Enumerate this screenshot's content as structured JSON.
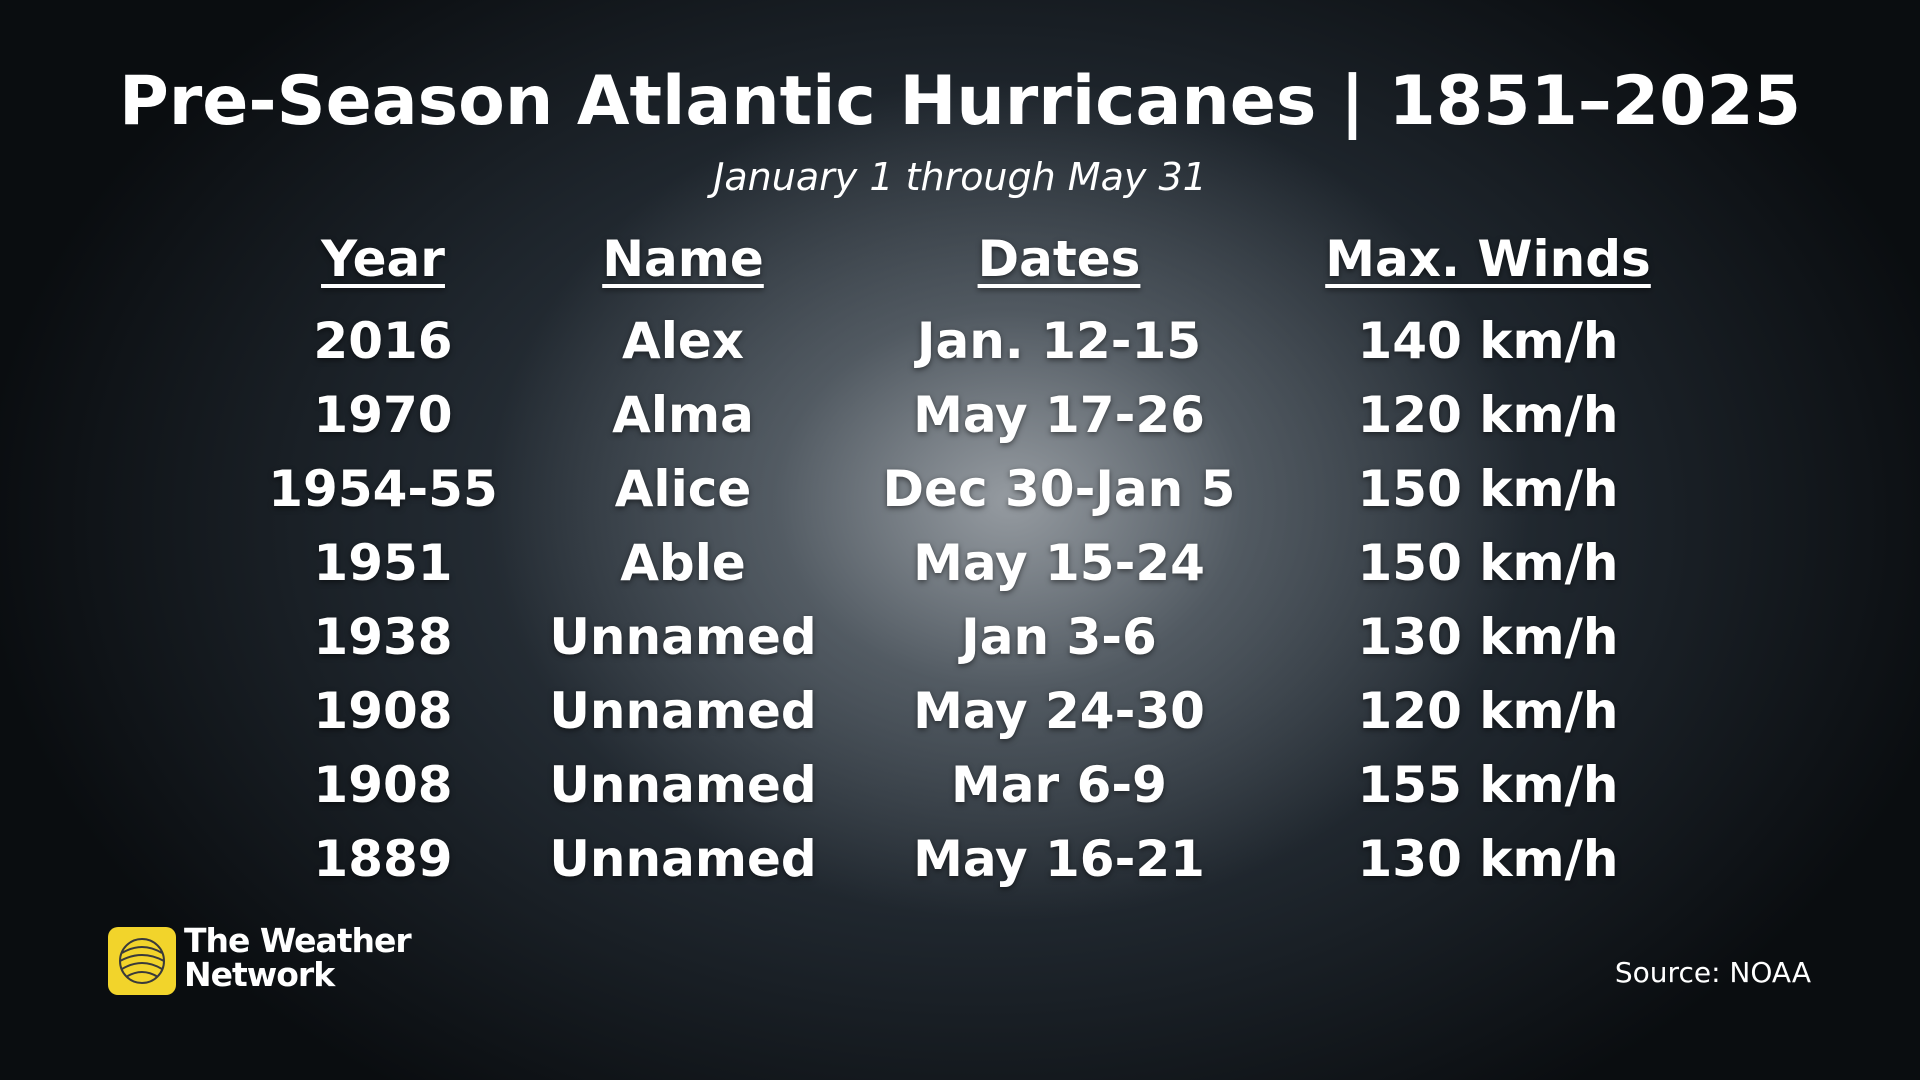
{
  "header": {
    "title": "Pre-Season Atlantic Hurricanes | 1851–2025",
    "subtitle": "January 1 through May 31"
  },
  "table": {
    "columns": [
      "Year",
      "Name",
      "Dates",
      "Max. Winds"
    ],
    "rows": [
      [
        "2016",
        "Alex",
        "Jan. 12-15",
        "140 km/h"
      ],
      [
        "1970",
        "Alma",
        "May 17-26",
        "120 km/h"
      ],
      [
        "1954-55",
        "Alice",
        "Dec 30-Jan 5",
        "150 km/h"
      ],
      [
        "1951",
        "Able",
        "May 15-24",
        "150 km/h"
      ],
      [
        "1938",
        "Unnamed",
        "Jan 3-6",
        "130 km/h"
      ],
      [
        "1908",
        "Unnamed",
        "May 24-30",
        "120 km/h"
      ],
      [
        "1908",
        "Unnamed",
        "Mar 6-9",
        "155 km/h"
      ],
      [
        "1889",
        "Unnamed",
        "May 16-21",
        "130 km/h"
      ]
    ]
  },
  "logo": {
    "lines": [
      "The Weather",
      "Network"
    ]
  },
  "footer": {
    "source": "Source: NOAA"
  }
}
